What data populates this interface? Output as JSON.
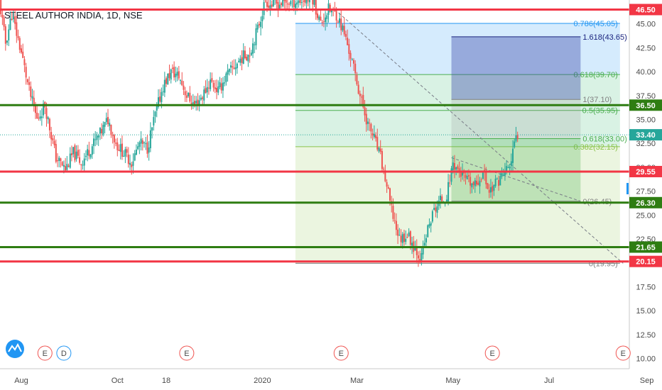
{
  "chart_data": {
    "type": "candlestick",
    "title": "STEEL AUTHOR INDIA, 1D, NSE",
    "y_axis": {
      "min": 9.0,
      "max": 47.5,
      "ticks": [
        "10.00",
        "12.50",
        "15.00",
        "17.50",
        "20.00",
        "22.50",
        "25.00",
        "27.50",
        "30.00",
        "32.50",
        "35.00",
        "37.50",
        "40.00",
        "42.50",
        "45.00"
      ],
      "tick_values": [
        10,
        12.5,
        15,
        17.5,
        20,
        22.5,
        25,
        27.5,
        30,
        32.5,
        35,
        37.5,
        40,
        42.5,
        45
      ]
    },
    "x_axis": {
      "labels": [
        "Aug",
        "Oct",
        "18",
        "2020",
        "Mar",
        "May",
        "Jul",
        "Sep"
      ],
      "label_days": [
        0,
        61,
        92,
        153,
        213,
        274,
        335,
        397
      ]
    },
    "current_price": {
      "label": "33.40",
      "value": 33.4,
      "color": "#26a69a"
    },
    "horizontal_levels": [
      {
        "label": "46.50",
        "value": 46.5,
        "color": "#f23645"
      },
      {
        "label": "36.50",
        "value": 36.5,
        "color": "#2e7d12"
      },
      {
        "label": "29.55",
        "value": 29.55,
        "color": "#f23645"
      },
      {
        "label": "26.30",
        "value": 26.3,
        "color": "#2e7d12"
      },
      {
        "label": "21.65",
        "value": 21.65,
        "color": "#2e7d12"
      },
      {
        "label": "20.15",
        "value": 20.15,
        "color": "#f23645"
      }
    ],
    "fib_retracement": {
      "start_day": 174,
      "end_day": 380,
      "levels": [
        {
          "label": "0.786(45.05)",
          "value": 45.05,
          "color": "#2196f3"
        },
        {
          "label": "0.618(39.70)",
          "value": 39.7,
          "color": "#4caf50"
        },
        {
          "label": "0.5(35.95)",
          "value": 35.95,
          "color": "#4caf50"
        },
        {
          "label": "0.382(32.15)",
          "value": 32.15,
          "color": "#8bc34a"
        },
        {
          "label": "0(19.95)",
          "value": 19.95,
          "color": "#808080"
        }
      ]
    },
    "fib_extension": {
      "start_day": 273,
      "end_day": 355,
      "levels": [
        {
          "label": "1.618(43.65)",
          "value": 43.65,
          "color": "#1a237e"
        },
        {
          "label": "1(37.10)",
          "value": 37.1,
          "color": "#808080"
        },
        {
          "label": "0.618(33.00)",
          "value": 33.0,
          "color": "#4caf50"
        },
        {
          "label": "0(26.45)",
          "value": 26.45,
          "color": "#808080"
        }
      ]
    },
    "trendlines": [
      {
        "from": [
          199,
          46.5
        ],
        "to": [
          382,
          19.95
        ],
        "style": "dashed"
      },
      {
        "from": [
          273,
          31.0
        ],
        "to": [
          355,
          26.45
        ],
        "style": "dashed"
      }
    ],
    "events": [
      {
        "letter": "E",
        "day": 15,
        "type": "earnings"
      },
      {
        "letter": "D",
        "day": 27,
        "type": "dividend"
      },
      {
        "letter": "E",
        "day": 105,
        "type": "earnings"
      },
      {
        "letter": "E",
        "day": 203,
        "type": "earnings"
      },
      {
        "letter": "E",
        "day": 299,
        "type": "earnings"
      },
      {
        "letter": "E",
        "day": 382,
        "type": "earnings"
      }
    ],
    "keypoints": [
      [
        -14,
        47.5
      ],
      [
        -10,
        43.0
      ],
      [
        -6,
        46.0
      ],
      [
        0,
        42.0
      ],
      [
        5,
        38.0
      ],
      [
        10,
        35.0
      ],
      [
        15,
        36.5
      ],
      [
        22,
        31.0
      ],
      [
        28,
        29.8
      ],
      [
        33,
        31.5
      ],
      [
        38,
        30.5
      ],
      [
        44,
        32.0
      ],
      [
        50,
        33.5
      ],
      [
        55,
        35.0
      ],
      [
        60,
        32.5
      ],
      [
        65,
        31.5
      ],
      [
        70,
        30.5
      ],
      [
        75,
        32.5
      ],
      [
        80,
        32.0
      ],
      [
        85,
        35.5
      ],
      [
        90,
        38.5
      ],
      [
        95,
        40.0
      ],
      [
        100,
        39.5
      ],
      [
        105,
        37.5
      ],
      [
        110,
        36.5
      ],
      [
        115,
        37.5
      ],
      [
        120,
        39.0
      ],
      [
        125,
        38.0
      ],
      [
        130,
        39.5
      ],
      [
        135,
        40.5
      ],
      [
        140,
        41.5
      ],
      [
        145,
        42.0
      ],
      [
        150,
        44.5
      ],
      [
        155,
        47.5
      ],
      [
        158,
        47.0
      ],
      [
        185,
        47.6
      ],
      [
        190,
        45.0
      ],
      [
        195,
        46.5
      ],
      [
        200,
        46.0
      ],
      [
        205,
        44.0
      ],
      [
        210,
        41.0
      ],
      [
        215,
        37.5
      ],
      [
        220,
        34.5
      ],
      [
        224,
        33.0
      ],
      [
        228,
        31.0
      ],
      [
        232,
        28.0
      ],
      [
        235,
        25.5
      ],
      [
        240,
        22.5
      ],
      [
        245,
        23.0
      ],
      [
        250,
        21.5
      ],
      [
        254,
        20.5
      ],
      [
        258,
        23.5
      ],
      [
        262,
        25.5
      ],
      [
        266,
        26.5
      ],
      [
        270,
        27.0
      ],
      [
        274,
        30.5
      ],
      [
        278,
        29.5
      ],
      [
        283,
        28.5
      ],
      [
        288,
        28.0
      ],
      [
        293,
        29.5
      ],
      [
        297,
        27.5
      ],
      [
        302,
        28.5
      ],
      [
        307,
        29.5
      ],
      [
        311,
        30.5
      ],
      [
        313,
        32.5
      ],
      [
        315,
        33.4
      ]
    ]
  }
}
